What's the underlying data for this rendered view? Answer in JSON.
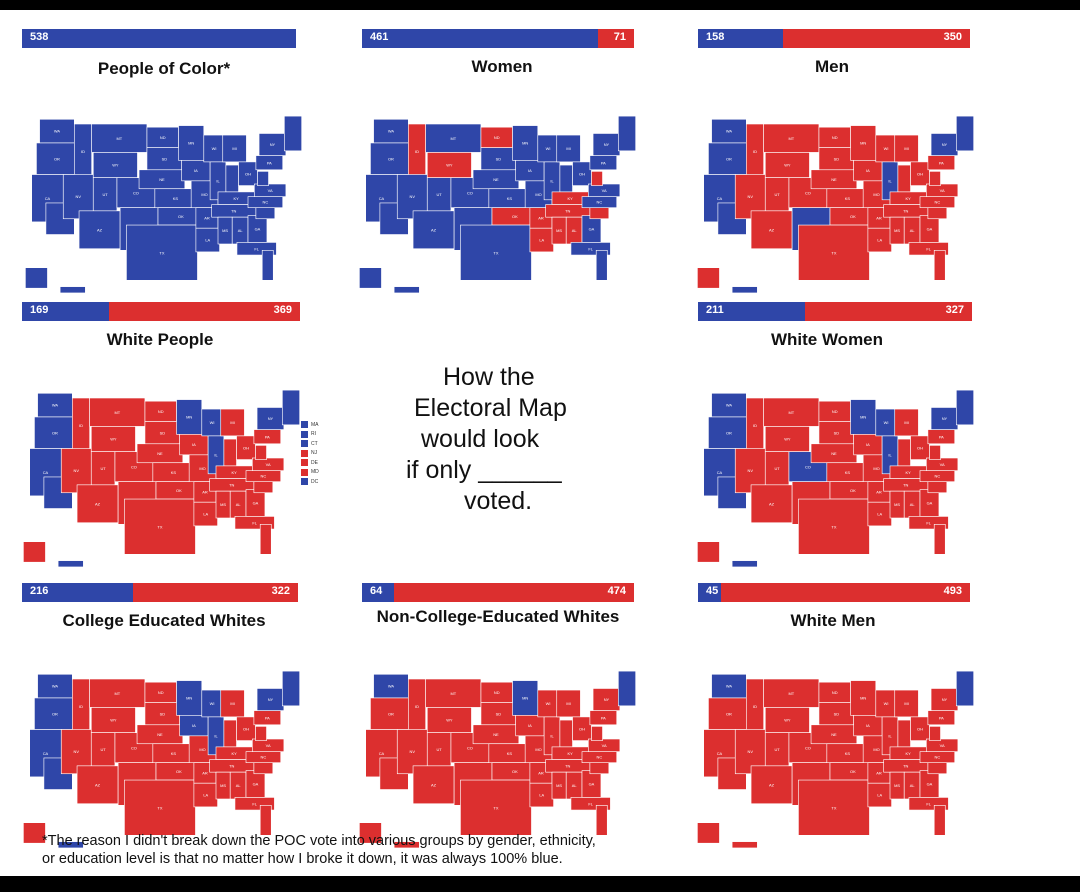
{
  "colors": {
    "dem": "#2f46a8",
    "rep": "#dc2f2f"
  },
  "panels": [
    {
      "title": "People of Color*",
      "dem": 538,
      "rep": 0,
      "dem_label": "538",
      "rep_label": ""
    },
    {
      "title": "Women",
      "dem": 461,
      "rep": 71,
      "dem_label": "461",
      "rep_label": "71"
    },
    {
      "title": "Men",
      "dem": 158,
      "rep": 350,
      "dem_label": "158",
      "rep_label": "350"
    },
    {
      "title": "White People",
      "dem": 169,
      "rep": 369,
      "dem_label": "169",
      "rep_label": "369"
    },
    {
      "title": "White Women",
      "dem": 211,
      "rep": 327,
      "dem_label": "211",
      "rep_label": "327"
    },
    {
      "title": "College Educated Whites",
      "dem": 216,
      "rep": 322,
      "dem_label": "216",
      "rep_label": "322"
    },
    {
      "title": "Non-College-Educated Whites",
      "dem": 64,
      "rep": 474,
      "dem_label": "64",
      "rep_label": "474"
    },
    {
      "title": "White Men",
      "dem": 45,
      "rep": 493,
      "dem_label": "45",
      "rep_label": "493"
    }
  ],
  "center": {
    "line1": "How the",
    "line2": "Electoral Map",
    "line3": "would look",
    "line4": "if only ______",
    "line5": "voted."
  },
  "legend": [
    "MA",
    "RI",
    "CT",
    "NJ",
    "DE",
    "MD",
    "DC"
  ],
  "legend_colors": [
    "#2f46a8",
    "#2f46a8",
    "#2f46a8",
    "#dc2f2f",
    "#dc2f2f",
    "#dc2f2f",
    "#2f46a8"
  ],
  "footnote": {
    "line1": "*The reason I didn't break down the POC vote into various groups by gender, ethnicity,",
    "line2": "or education level is that no matter how I broke it down, it was always 100% blue."
  }
}
